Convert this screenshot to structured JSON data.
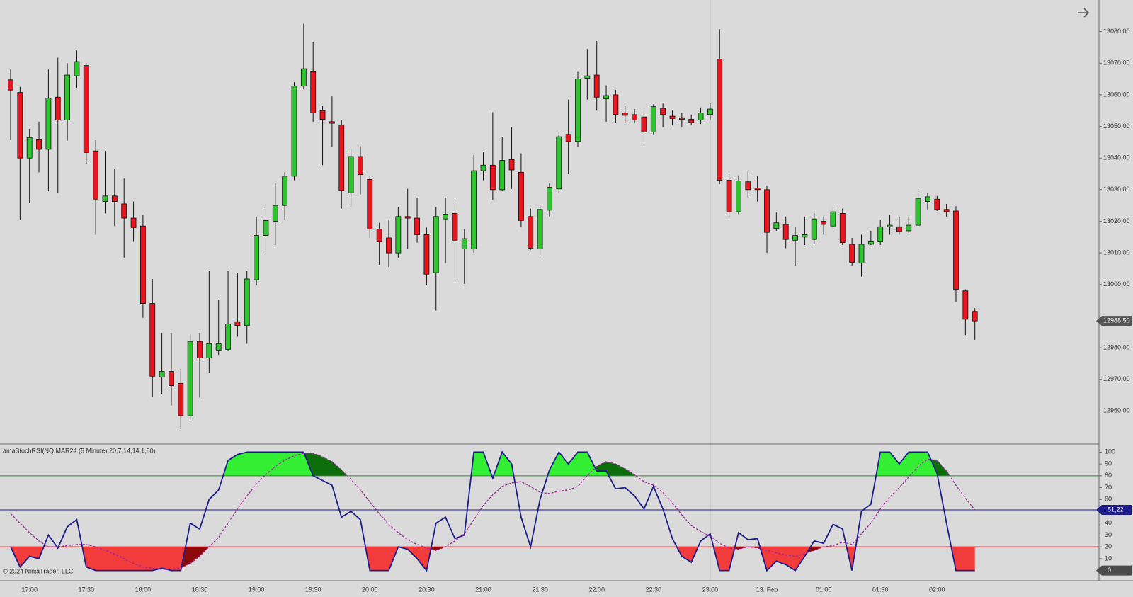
{
  "copyright": "© 2024 NinjaTrader, LLC",
  "chart_data": [
    {
      "type": "candlestick",
      "categories": [
        null,
        null,
        "17:00",
        null,
        null,
        null,
        null,
        null,
        "17:30",
        null,
        null,
        null,
        null,
        null,
        "18:00",
        null,
        null,
        null,
        null,
        null,
        "18:30",
        null,
        null,
        null,
        null,
        null,
        "19:00",
        null,
        null,
        null,
        null,
        null,
        "19:30",
        null,
        null,
        null,
        null,
        null,
        "20:00",
        null,
        null,
        null,
        null,
        null,
        "20:30",
        null,
        null,
        null,
        null,
        null,
        "21:00",
        null,
        null,
        null,
        null,
        null,
        "21:30",
        null,
        null,
        null,
        null,
        null,
        "22:00",
        null,
        null,
        null,
        null,
        null,
        "22:30",
        null,
        null,
        null,
        null,
        null,
        "23:00",
        null,
        null,
        null,
        null,
        null,
        "13. Feb",
        null,
        null,
        null,
        null,
        null,
        "01:00",
        null,
        null,
        null,
        null,
        null,
        "01:30",
        null,
        null,
        null,
        null,
        null,
        "02:00",
        null,
        null,
        null,
        null
      ],
      "ohlc": [
        [
          13064.75,
          13068,
          13045.75,
          13061.5
        ],
        [
          13060.75,
          13062.5,
          13020.5,
          13040
        ],
        [
          13040,
          13049.25,
          13025.75,
          13046.5
        ],
        [
          13046,
          13051.5,
          13035.5,
          13042.75
        ],
        [
          13042.75,
          13068,
          13029.5,
          13059
        ],
        [
          13059.25,
          13071.75,
          13029,
          13052
        ],
        [
          13052,
          13070,
          13045.5,
          13066.25
        ],
        [
          13066,
          13074,
          13062.25,
          13070.5
        ],
        [
          13069.25,
          13070,
          13038.25,
          13041.75
        ],
        [
          13042.25,
          13045.75,
          13015.75,
          13027
        ],
        [
          13026.25,
          13042.25,
          13022.5,
          13028
        ],
        [
          13028,
          13036.5,
          13018.5,
          13026.25
        ],
        [
          13025.5,
          13033.5,
          13008.5,
          13021
        ],
        [
          13021,
          13026.25,
          13013.5,
          13018
        ],
        [
          13018.5,
          13022,
          12989.5,
          12994
        ],
        [
          12994,
          13001.75,
          12964.5,
          12971
        ],
        [
          12970.75,
          12984.75,
          12965.25,
          12972.5
        ],
        [
          12972.5,
          12984.75,
          12961.75,
          12968
        ],
        [
          12968.75,
          12973.25,
          12954.25,
          12958.5
        ],
        [
          12958.5,
          12984.25,
          12957.25,
          12982
        ],
        [
          12982,
          12984.75,
          12964.25,
          12976.75
        ],
        [
          12976.75,
          13004.25,
          12972,
          12981.25
        ],
        [
          12979.25,
          12995.25,
          12977.75,
          12981.25
        ],
        [
          12979.5,
          13004.25,
          12979,
          12987.5
        ],
        [
          12988.25,
          13003.75,
          12983.5,
          12987
        ],
        [
          12987,
          13004.25,
          12981.25,
          13001.75
        ],
        [
          13001.5,
          13021.5,
          12999.75,
          13015.5
        ],
        [
          13015.5,
          13025,
          13009.5,
          13020.25
        ],
        [
          13020,
          13032,
          13012.5,
          13025
        ],
        [
          13025,
          13035.5,
          13020.5,
          13034.25
        ],
        [
          13034.25,
          13064,
          13033,
          13062.75
        ],
        [
          13062.75,
          13082.5,
          13061.75,
          13068.25
        ],
        [
          13067.5,
          13076.75,
          13051.5,
          13054.25
        ],
        [
          13055,
          13056.5,
          13037.75,
          13052.25
        ],
        [
          13051.5,
          13059.5,
          13043.5,
          13051
        ],
        [
          13050.5,
          13052,
          13024,
          13029.75
        ],
        [
          13029,
          13042.75,
          13024.5,
          13040.5
        ],
        [
          13040.5,
          13043.75,
          13028.5,
          13034.75
        ],
        [
          13033.25,
          13034.25,
          13014.75,
          13017.5
        ],
        [
          13017.5,
          13019.5,
          13006.25,
          13013.5
        ],
        [
          13014.75,
          13020.5,
          13005.5,
          13010
        ],
        [
          13010,
          13024.5,
          13008.5,
          13021.5
        ],
        [
          13021.5,
          13030.25,
          13011.25,
          13021
        ],
        [
          13021,
          13027.5,
          13013.25,
          13015.75
        ],
        [
          13015.75,
          13018,
          12999.75,
          13003.25
        ],
        [
          13003.75,
          13024.5,
          12991.75,
          13021.5
        ],
        [
          13020.75,
          13027.5,
          13006.75,
          13022.25
        ],
        [
          13022.5,
          13026.25,
          13001.5,
          13014
        ],
        [
          13011.25,
          13017.5,
          13000.25,
          13014.5
        ],
        [
          13011.25,
          13041,
          13010,
          13036
        ],
        [
          13036,
          13041.75,
          13033,
          13037.75
        ],
        [
          13037.75,
          13054.5,
          13026.75,
          13030
        ],
        [
          13030,
          13046.75,
          13029.5,
          13039.25
        ],
        [
          13039.5,
          13049.75,
          13030.25,
          13036.25
        ],
        [
          13035.5,
          13041.5,
          13018.25,
          13020.25
        ],
        [
          13021.5,
          13024,
          13011,
          13011.5
        ],
        [
          13011.25,
          13025,
          13009.25,
          13023.75
        ],
        [
          13023.5,
          13032,
          13021.5,
          13030.75
        ],
        [
          13030.25,
          13048,
          13029,
          13046.75
        ],
        [
          13047.5,
          13058.5,
          13035,
          13045.25
        ],
        [
          13045.25,
          13067.5,
          13043.5,
          13065
        ],
        [
          13065.25,
          13074.5,
          13058.5,
          13066
        ],
        [
          13066.25,
          13077,
          13055,
          13059.25
        ],
        [
          13058.75,
          13063,
          13051.5,
          13059.75
        ],
        [
          13060,
          13061.5,
          13051.25,
          13053.75
        ],
        [
          13054.25,
          13056.5,
          13051,
          13053.5
        ],
        [
          13053.75,
          13055.5,
          13051,
          13052
        ],
        [
          13053,
          13055,
          13044.5,
          13048.25
        ],
        [
          13048.25,
          13057,
          13047.5,
          13056.25
        ],
        [
          13055.75,
          13057.25,
          13049.75,
          13053.75
        ],
        [
          13053.25,
          13055,
          13050.5,
          13052.5
        ],
        [
          13052.75,
          13054.25,
          13049.75,
          13052.25
        ],
        [
          13052.25,
          13053.75,
          13050.5,
          13051.25
        ],
        [
          13052,
          13056,
          13050.75,
          13054.25
        ],
        [
          13053.75,
          13057.5,
          13052,
          13055.5
        ],
        [
          13071.25,
          13080.75,
          13031.75,
          13033
        ],
        [
          13033,
          13035,
          13021.5,
          13023
        ],
        [
          13023,
          13034.5,
          13022.25,
          13032.75
        ],
        [
          13032.5,
          13035.75,
          13027.5,
          13030
        ],
        [
          13030.5,
          13034.25,
          13026.25,
          13030
        ],
        [
          13030,
          13031.25,
          13010,
          13016.5
        ],
        [
          13017.75,
          13022.75,
          13017,
          13019.5
        ],
        [
          13019,
          13021.5,
          13011.5,
          13014.25
        ],
        [
          13014,
          13018.25,
          13006,
          13015.5
        ],
        [
          13015,
          13021.5,
          13012.5,
          13015.75
        ],
        [
          13014.25,
          13022.5,
          13012.75,
          13020.75
        ],
        [
          13020,
          13021.5,
          13015.75,
          13019
        ],
        [
          13018.5,
          13024.5,
          13017.5,
          13023
        ],
        [
          13022.5,
          13024,
          13012.5,
          13013.25
        ],
        [
          13012.75,
          13014.75,
          13006,
          13007
        ],
        [
          13006.75,
          13015.75,
          13002.5,
          13012.75
        ],
        [
          13012.75,
          13017,
          13012.5,
          13013.5
        ],
        [
          13013.5,
          13020.5,
          13012.5,
          13018.25
        ],
        [
          13018.25,
          13022,
          13015.75,
          13018.75
        ],
        [
          13018.25,
          13021.5,
          13015.75,
          13016.75
        ],
        [
          13017,
          13021.5,
          13016.25,
          13018.75
        ],
        [
          13018.75,
          13029.5,
          13018.5,
          13027.25
        ],
        [
          13026.25,
          13029,
          13023.75,
          13027.75
        ],
        [
          13027,
          13028,
          13023.25,
          13023.75
        ],
        [
          13023.75,
          13025.5,
          13021.5,
          13023
        ],
        [
          13023.25,
          13024.75,
          12994.5,
          12998.5
        ],
        [
          12998,
          12998.5,
          12984,
          12989
        ],
        [
          12991.5,
          12992.5,
          12982.5,
          12988.5
        ]
      ],
      "up_color": "#2ec42e",
      "down_color": "#e8141e",
      "ylim": [
        12950,
        13090
      ],
      "yticks": [
        {
          "value": 12960,
          "label": "12960,00"
        },
        {
          "value": 12970,
          "label": "12970,00"
        },
        {
          "value": 12980,
          "label": "12980,00"
        },
        {
          "value": 13000,
          "label": "13000,00"
        },
        {
          "value": 13010,
          "label": "13010,00"
        },
        {
          "value": 13020,
          "label": "13020,00"
        },
        {
          "value": 13030,
          "label": "13030,00"
        },
        {
          "value": 13040,
          "label": "13040,00"
        },
        {
          "value": 13050,
          "label": "13050,00"
        },
        {
          "value": 13060,
          "label": "13060,00"
        },
        {
          "value": 13070,
          "label": "13070,00"
        },
        {
          "value": 13080,
          "label": "13080,00"
        }
      ],
      "last_price": {
        "value": 12988.5,
        "label": "12988,50"
      }
    },
    {
      "type": "oscillator",
      "title": "amaStochRSI(NQ MAR24 (5 Minute),20,7,14,14,1,80)",
      "ylim": [
        -8,
        105
      ],
      "yticks": [
        10,
        20,
        30,
        40,
        50,
        60,
        70,
        80,
        90,
        100
      ],
      "levels": [
        {
          "value": 80,
          "color": "#2a8a2a"
        },
        {
          "value": 20,
          "color": "#d01818"
        }
      ],
      "fills": {
        "upper": "#33ee33",
        "upper_signal": "#0b6e0b",
        "lower": "#f23c3c",
        "lower_signal": "#8c0a0a"
      },
      "series": [
        {
          "color": "#1c1c8a",
          "dashed": false,
          "values": [
            20,
            3,
            12,
            10,
            30,
            19,
            37,
            43,
            3,
            0,
            0,
            0,
            0,
            0,
            0,
            0,
            2,
            0,
            0,
            40,
            35,
            60,
            68,
            93,
            98,
            100,
            100,
            100,
            100,
            100,
            100,
            100,
            80,
            76,
            72,
            45,
            50,
            43,
            0,
            0,
            0,
            20,
            18,
            10,
            0,
            40,
            45,
            27,
            30,
            100,
            100,
            78,
            100,
            90,
            45,
            20,
            60,
            85,
            100,
            90,
            100,
            100,
            84,
            84,
            69,
            70,
            63,
            52,
            71,
            52,
            27,
            12,
            7,
            25,
            31,
            0,
            0,
            32,
            26,
            27,
            0,
            8,
            5,
            0,
            12,
            25,
            23,
            39,
            35,
            0,
            50,
            56,
            100,
            100,
            90,
            100,
            100,
            100,
            82,
            40,
            0,
            0,
            0
          ]
        },
        {
          "color": "#a0249c",
          "dashed": true,
          "values": [
            48,
            40,
            32,
            25,
            20,
            20,
            21,
            22,
            22,
            20,
            17,
            14,
            10,
            6,
            3,
            2,
            1,
            1,
            2,
            6,
            12,
            20,
            28,
            40,
            52,
            63,
            73,
            81,
            88,
            93,
            97,
            99,
            99,
            96,
            92,
            85,
            77,
            68,
            58,
            48,
            39,
            32,
            26,
            22,
            19,
            17,
            20,
            25,
            31,
            43,
            55,
            64,
            71,
            74,
            75,
            71,
            66,
            65,
            67,
            68,
            71,
            80,
            88,
            92,
            90,
            86,
            81,
            75,
            72,
            66,
            57,
            47,
            38,
            33,
            29,
            23,
            19,
            18,
            20,
            19,
            17,
            15,
            13,
            12,
            14,
            17,
            20,
            21,
            24,
            22,
            31,
            40,
            52,
            62,
            70,
            79,
            88,
            94,
            93,
            84,
            72,
            61,
            51.22
          ]
        }
      ],
      "markers": [
        {
          "value": 51.22,
          "label": "51,22",
          "color": "#1c1c8a",
          "line": true
        },
        {
          "value": 0,
          "label": "0",
          "color": "#4a4a4a",
          "line": false
        }
      ]
    }
  ]
}
